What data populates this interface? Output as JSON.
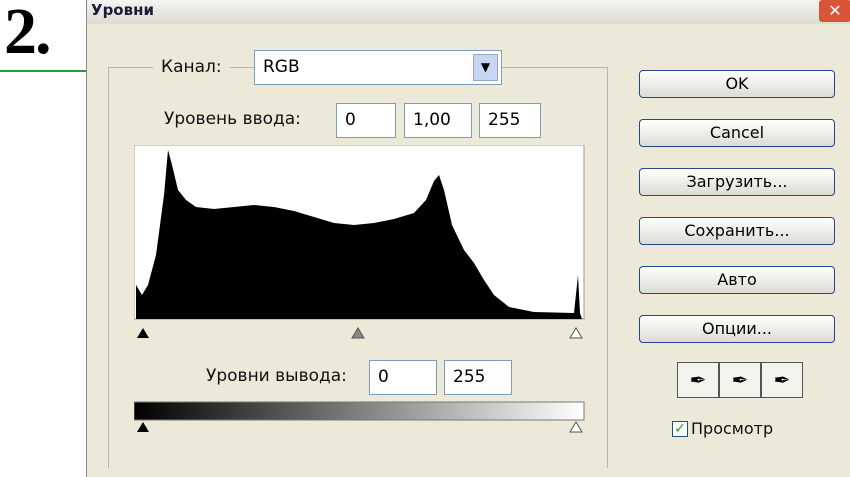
{
  "step": "2.",
  "dialog": {
    "title": "Уровни",
    "channel": {
      "label": "Канал:",
      "value": "RGB"
    },
    "input_levels": {
      "label": "Уровень ввода:",
      "values": [
        "0",
        "1,00",
        "255"
      ]
    },
    "output_levels": {
      "label": "Уровни вывода:",
      "values": [
        "0",
        "255"
      ]
    },
    "buttons": [
      "OK",
      "Cancel",
      "Загрузить...",
      "Сохранить...",
      "Авто",
      "Опции..."
    ],
    "preview": {
      "label": "Просмотр",
      "checked": true
    }
  }
}
